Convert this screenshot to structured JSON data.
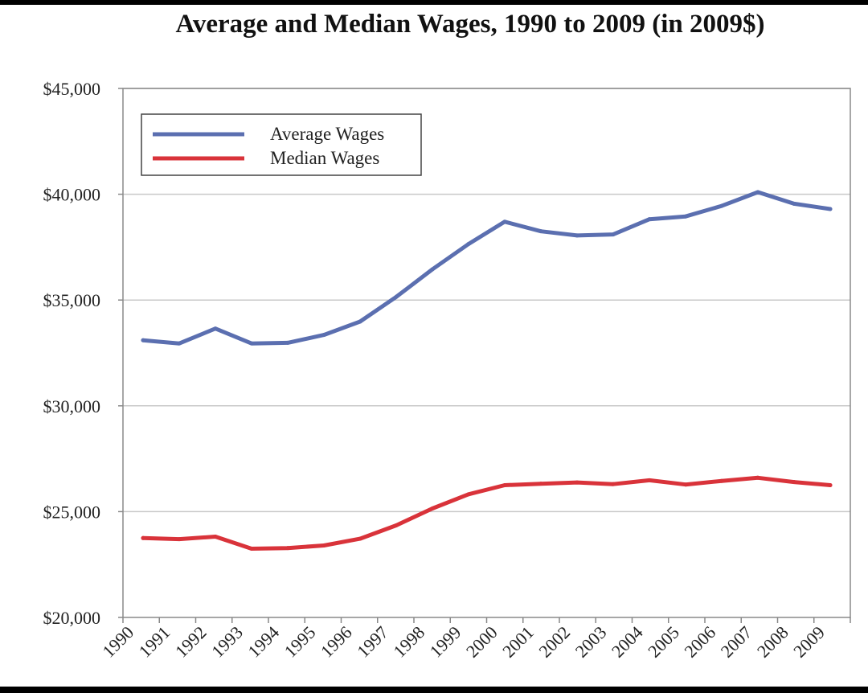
{
  "chart_data": {
    "type": "line",
    "title": "Average and Median Wages, 1990 to 2009 (in 2009$)",
    "xlabel": "",
    "ylabel": "",
    "x": [
      "1990",
      "1991",
      "1992",
      "1993",
      "1994",
      "1995",
      "1996",
      "1997",
      "1998",
      "1999",
      "2000",
      "2001",
      "2002",
      "2003",
      "2004",
      "2005",
      "2006",
      "2007",
      "2008",
      "2009"
    ],
    "ylim": [
      20000,
      45000
    ],
    "yticks": [
      20000,
      25000,
      30000,
      35000,
      40000,
      45000
    ],
    "ytick_labels": [
      "$20,000",
      "$25,000",
      "$30,000",
      "$35,000",
      "$40,000",
      "$45,000"
    ],
    "grid": "horizontal",
    "legend_position": "top-left",
    "series": [
      {
        "name": "Average Wages",
        "color": "#5b6fb0",
        "values": [
          33100,
          32950,
          33650,
          32950,
          32980,
          33350,
          33980,
          35150,
          36450,
          37650,
          38700,
          38250,
          38050,
          38100,
          38820,
          38950,
          39450,
          40100,
          39550,
          39300
        ]
      },
      {
        "name": "Median Wages",
        "color": "#d9333a",
        "values": [
          23750,
          23700,
          23820,
          23250,
          23280,
          23400,
          23720,
          24350,
          25150,
          25820,
          26250,
          26320,
          26380,
          26300,
          26480,
          26280,
          26450,
          26600,
          26400,
          26250
        ]
      }
    ]
  }
}
